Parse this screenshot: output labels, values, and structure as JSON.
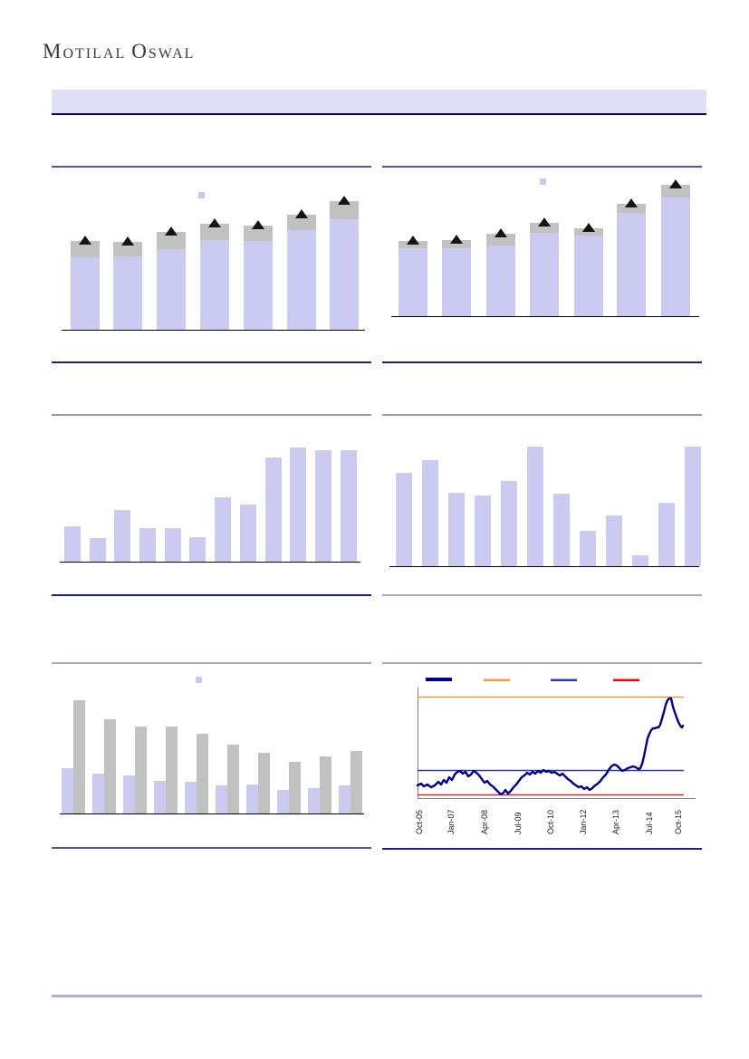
{
  "logo": {
    "word1_initial": "M",
    "word1_rest": "OTILAL",
    "word2_initial": "O",
    "word2_rest": "SWAL"
  },
  "colors": {
    "bar_lavender": "#cbcbf2",
    "bar_gray": "#c1c1c1",
    "marker_black": "#141414",
    "line_navy": "#00008b",
    "ref_orange": "#f79646",
    "ref_blue": "#3333cc",
    "ref_red": "#ff0000",
    "axis_black": "#000000",
    "axis_gray": "#808080",
    "band_lavender": "#dfdff7",
    "band_border_navy": "#00008b"
  },
  "chart_data": [
    {
      "type": "bar",
      "subtype": "stacked_with_triangle_markers",
      "title": "",
      "axis_labels_visible": false,
      "categories": [
        "",
        "",
        "",
        "",
        "",
        "",
        ""
      ],
      "series": [
        {
          "name": "base-segment",
          "color": "#cbcbf2",
          "values": [
            80,
            81,
            89,
            99,
            98,
            110,
            122
          ]
        },
        {
          "name": "top-segment",
          "color": "#c1c1c1",
          "values": [
            18,
            16,
            19,
            18,
            17,
            17,
            20
          ]
        }
      ],
      "markers": {
        "shape": "triangle-up",
        "color": "#141414",
        "on": "bar-top"
      },
      "legend": {
        "visible": true,
        "swatch_color": "#c7c7f2",
        "position": "top-center",
        "labels_visible": false
      },
      "ylim": [
        0,
        195
      ],
      "units": "relative-px"
    },
    {
      "type": "bar",
      "subtype": "stacked_with_triangle_markers",
      "title": "",
      "axis_labels_visible": false,
      "categories": [
        "",
        "",
        "",
        "",
        "",
        "",
        ""
      ],
      "series": [
        {
          "name": "base-segment",
          "color": "#cbcbf2",
          "values": [
            75,
            75,
            78,
            92,
            89,
            114,
            131
          ]
        },
        {
          "name": "top-segment",
          "color": "#c1c1c1",
          "values": [
            8,
            9,
            13,
            11,
            8,
            10,
            14
          ]
        }
      ],
      "markers": {
        "shape": "triangle-up",
        "color": "#141414",
        "on": "bar-top"
      },
      "legend": {
        "visible": true,
        "swatch_color": "#c7c7f2",
        "position": "top-center",
        "labels_visible": false
      },
      "ylim": [
        0,
        180
      ],
      "units": "relative-px"
    },
    {
      "type": "bar",
      "title": "",
      "axis_labels_visible": false,
      "categories": [
        "",
        "",
        "",
        "",
        "",
        "",
        "",
        "",
        "",
        "",
        "",
        ""
      ],
      "values": [
        39,
        26,
        57,
        37,
        37,
        27,
        71,
        63,
        115,
        126,
        123,
        123
      ],
      "color": "#cbcbf2",
      "ylim": [
        0,
        160
      ],
      "units": "relative-px"
    },
    {
      "type": "bar",
      "title": "",
      "axis_labels_visible": false,
      "categories": [
        "",
        "",
        "",
        "",
        "",
        "",
        "",
        "",
        "",
        "",
        "",
        ""
      ],
      "values": [
        103,
        117,
        81,
        78,
        94,
        132,
        80,
        39,
        56,
        12,
        70,
        132
      ],
      "color": "#cbcbf2",
      "ylim": [
        0,
        165
      ],
      "units": "relative-px"
    },
    {
      "type": "bar",
      "subtype": "grouped",
      "title": "",
      "axis_labels_visible": false,
      "categories": [
        "",
        "",
        "",
        "",
        "",
        "",
        "",
        "",
        "",
        ""
      ],
      "series": [
        {
          "name": "series-lavender",
          "color": "#cbcbf2",
          "values": [
            50,
            44,
            42,
            36,
            35,
            31,
            32,
            26,
            28,
            31
          ]
        },
        {
          "name": "series-gray",
          "color": "#c1c1c1",
          "values": [
            125,
            104,
            96,
            96,
            88,
            76,
            67,
            57,
            63,
            69
          ]
        }
      ],
      "legend": {
        "visible": true,
        "swatch_color": "#c7c7f2",
        "position": "top-center",
        "labels_visible": false
      },
      "ylim": [
        0,
        165
      ],
      "units": "relative-px"
    },
    {
      "type": "line",
      "title": "",
      "x_tick_labels": [
        "Oct-05",
        "Jan-07",
        "Apr-08",
        "Jul-09",
        "Oct-10",
        "Jan-12",
        "Apr-13",
        "Jul-14",
        "Oct-15"
      ],
      "y_axis_labels_visible": false,
      "series": [
        {
          "name": "main-line",
          "color": "#00008b",
          "points": [
            [
              0,
              15
            ],
            [
              4,
              17
            ],
            [
              7,
              14
            ],
            [
              11,
              16
            ],
            [
              15,
              13
            ],
            [
              19,
              15
            ],
            [
              23,
              19
            ],
            [
              26,
              16
            ],
            [
              29,
              21
            ],
            [
              32,
              18
            ],
            [
              35,
              24
            ],
            [
              38,
              21
            ],
            [
              41,
              27
            ],
            [
              44,
              30
            ],
            [
              47,
              31
            ],
            [
              50,
              28
            ],
            [
              53,
              30
            ],
            [
              56,
              25
            ],
            [
              59,
              27
            ],
            [
              62,
              31
            ],
            [
              65,
              29
            ],
            [
              68,
              26
            ],
            [
              71,
              22
            ],
            [
              74,
              18
            ],
            [
              77,
              20
            ],
            [
              80,
              16
            ],
            [
              83,
              14
            ],
            [
              86,
              11
            ],
            [
              89,
              8
            ],
            [
              92,
              5
            ],
            [
              95,
              7
            ],
            [
              97,
              10
            ],
            [
              100,
              6
            ],
            [
              103,
              9
            ],
            [
              106,
              13
            ],
            [
              109,
              16
            ],
            [
              112,
              20
            ],
            [
              115,
              24
            ],
            [
              118,
              26
            ],
            [
              121,
              29
            ],
            [
              124,
              27
            ],
            [
              127,
              30
            ],
            [
              130,
              28
            ],
            [
              133,
              31
            ],
            [
              136,
              29
            ],
            [
              139,
              32
            ],
            [
              142,
              30
            ],
            [
              145,
              31
            ],
            [
              148,
              29
            ],
            [
              151,
              30
            ],
            [
              154,
              28
            ],
            [
              157,
              26
            ],
            [
              160,
              28
            ],
            [
              163,
              25
            ],
            [
              166,
              22
            ],
            [
              169,
              20
            ],
            [
              172,
              17
            ],
            [
              175,
              15
            ],
            [
              178,
              13
            ],
            [
              181,
              14
            ],
            [
              184,
              11
            ],
            [
              187,
              13
            ],
            [
              190,
              10
            ],
            [
              193,
              12
            ],
            [
              196,
              15
            ],
            [
              199,
              17
            ],
            [
              202,
              20
            ],
            [
              205,
              24
            ],
            [
              208,
              27
            ],
            [
              211,
              32
            ],
            [
              214,
              36
            ],
            [
              217,
              38
            ],
            [
              220,
              37
            ],
            [
              223,
              34
            ],
            [
              226,
              31
            ],
            [
              229,
              32
            ],
            [
              232,
              34
            ],
            [
              235,
              35
            ],
            [
              238,
              36
            ],
            [
              241,
              35
            ],
            [
              244,
              33
            ],
            [
              246,
              34
            ],
            [
              248,
              39
            ],
            [
              250,
              47
            ],
            [
              252,
              57
            ],
            [
              254,
              67
            ],
            [
              256,
              72
            ],
            [
              258,
              76
            ],
            [
              260,
              78
            ],
            [
              262,
              78
            ],
            [
              264,
              79
            ],
            [
              266,
              79
            ],
            [
              268,
              82
            ],
            [
              270,
              89
            ],
            [
              272,
              96
            ],
            [
              274,
              104
            ],
            [
              276,
              109
            ],
            [
              278,
              111
            ],
            [
              280,
              111
            ],
            [
              282,
              102
            ],
            [
              284,
              96
            ],
            [
              286,
              90
            ],
            [
              288,
              85
            ],
            [
              290,
              81
            ],
            [
              292,
              79
            ],
            [
              293,
              81
            ]
          ]
        }
      ],
      "ref_lines": [
        {
          "name": "upper-ref-line",
          "color": "#f79646",
          "value": 113
        },
        {
          "name": "middle-ref-line",
          "color": "#3333cc",
          "value": 32
        },
        {
          "name": "lower-ref-line",
          "color": "#ff0000",
          "value": 5
        }
      ],
      "legend": {
        "visible": true,
        "labels_visible": false,
        "position": "top",
        "entries": [
          {
            "name": "legend-navy",
            "color": "#00008b"
          },
          {
            "name": "legend-orange",
            "color": "#f79646"
          },
          {
            "name": "legend-blue",
            "color": "#3333cc"
          },
          {
            "name": "legend-red",
            "color": "#ff0000"
          }
        ]
      },
      "ylim": [
        0,
        123
      ],
      "units": "relative-px"
    }
  ]
}
